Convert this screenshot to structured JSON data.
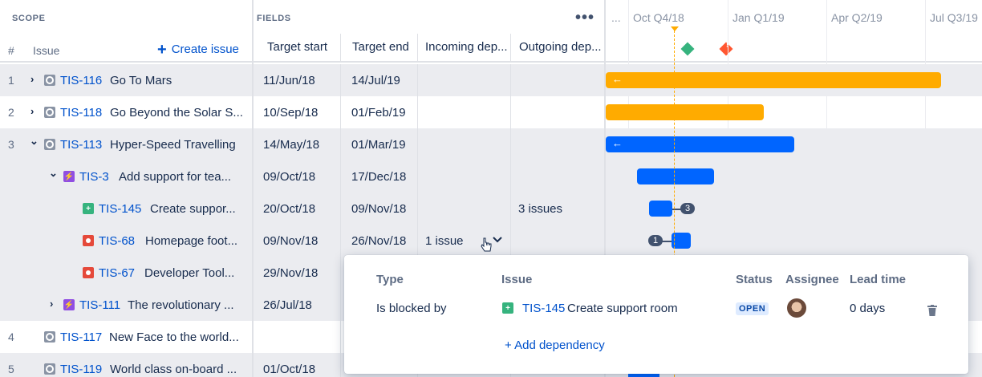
{
  "header": {
    "scope_title": "SCOPE",
    "fields_title": "FIELDS",
    "more_label": "•••",
    "col_number": "#",
    "col_issue": "Issue",
    "create_issue": "Create issue",
    "fields": [
      "Target start",
      "Target end",
      "Incoming dep...",
      "Outgoing dep..."
    ]
  },
  "timeline": {
    "labels": [
      "...",
      "Oct Q4/18",
      "Jan Q1/19",
      "Apr Q2/19",
      "Jul Q3/19"
    ],
    "milestones": [
      {
        "color": "#36b37e",
        "icon": "diamond"
      },
      {
        "color": "#ff5630",
        "icon": "exclamation-icon",
        "symbol": "!"
      }
    ]
  },
  "rows": [
    {
      "num": "1",
      "key": "TIS-116",
      "summary": "Go To Mars",
      "start": "11/Jun/18",
      "end": "14/Jul/19",
      "incoming": "",
      "outgoing": "",
      "type": "story",
      "expand": "›",
      "bar_color": "orange"
    },
    {
      "num": "2",
      "key": "TIS-118",
      "summary": "Go Beyond the Solar S...",
      "start": "10/Sep/18",
      "end": "01/Feb/19",
      "incoming": "",
      "outgoing": "",
      "type": "story",
      "expand": "›",
      "bar_color": "orange"
    },
    {
      "num": "3",
      "key": "TIS-113",
      "summary": "Hyper-Speed Travelling",
      "start": "14/May/18",
      "end": "01/Mar/19",
      "incoming": "",
      "outgoing": "",
      "type": "story",
      "expand": "⌄",
      "bar_color": "blue"
    },
    {
      "num": "",
      "key": "TIS-3",
      "summary": "Add support for tea...",
      "start": "09/Oct/18",
      "end": "17/Dec/18",
      "incoming": "",
      "outgoing": "",
      "type": "epic",
      "expand": "⌄",
      "bar_color": "blue"
    },
    {
      "num": "",
      "key": "TIS-145",
      "summary": "Create suppor...",
      "start": "20/Oct/18",
      "end": "09/Nov/18",
      "incoming": "",
      "outgoing": "3 issues",
      "type": "improve",
      "expand": "",
      "bar_color": "blue",
      "dep_count": "3"
    },
    {
      "num": "",
      "key": "TIS-68",
      "summary": "Homepage foot...",
      "start": "09/Nov/18",
      "end": "26/Nov/18",
      "incoming": "1 issue",
      "outgoing": "",
      "type": "bug",
      "expand": "",
      "bar_color": "blue",
      "dep_count": "1"
    },
    {
      "num": "",
      "key": "TIS-67",
      "summary": "Developer Tool...",
      "start": "29/Nov/18",
      "end": "",
      "incoming": "",
      "outgoing": "",
      "type": "bug",
      "expand": "",
      "bar_color": "blue"
    },
    {
      "num": "",
      "key": "TIS-111",
      "summary": "The revolutionary ...",
      "start": "26/Jul/18",
      "end": "",
      "incoming": "",
      "outgoing": "",
      "type": "epic",
      "expand": "›",
      "bar_color": "blue"
    },
    {
      "num": "4",
      "key": "TIS-117",
      "summary": "New Face to the world...",
      "start": "",
      "end": "",
      "incoming": "",
      "outgoing": "",
      "type": "story",
      "expand": "",
      "bar_color": "blue"
    },
    {
      "num": "5",
      "key": "TIS-119",
      "summary": "World class on-board ...",
      "start": "01/Oct/18",
      "end": "",
      "incoming": "",
      "outgoing": "",
      "type": "story",
      "expand": "",
      "bar_color": "blue"
    }
  ],
  "popup": {
    "headers": [
      "Type",
      "Issue",
      "Status",
      "Assignee",
      "Lead time"
    ],
    "dependency": {
      "type": "Is blocked by",
      "key": "TIS-145",
      "summary": "Create support room",
      "status": "OPEN",
      "lead_time": "0 days"
    },
    "add_dependency": "+ Add dependency"
  },
  "colors": {
    "orange": "#ffab00",
    "blue": "#0065ff",
    "link": "#0052cc"
  }
}
